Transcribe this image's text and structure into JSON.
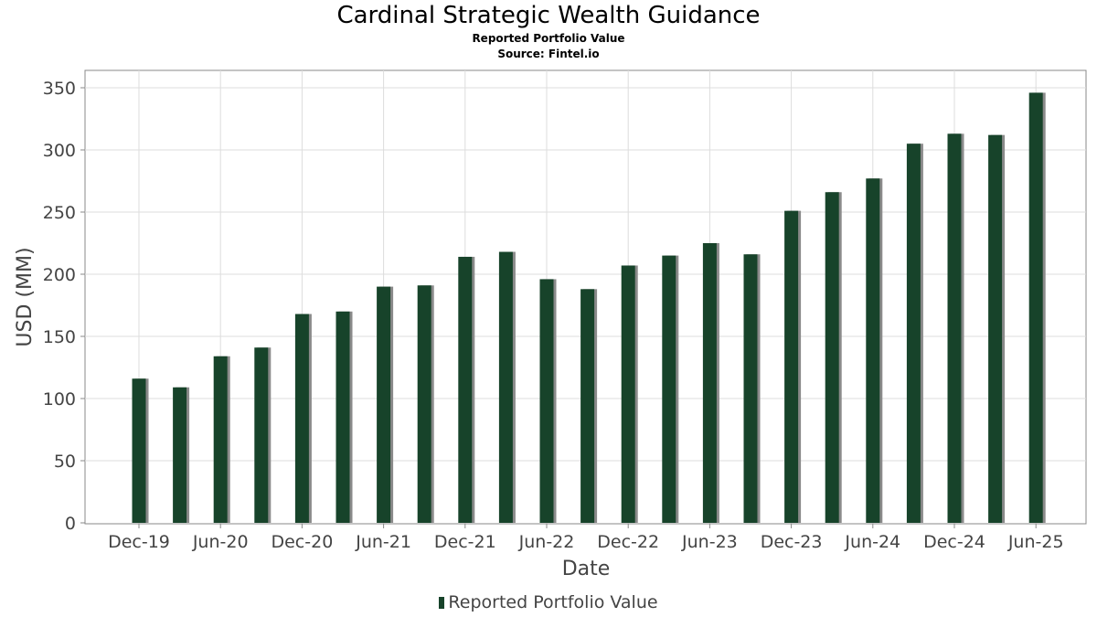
{
  "header": {
    "title": "Cardinal Strategic Wealth Guidance",
    "subtitle": "Reported Portfolio Value",
    "source": "Source: Fintel.io"
  },
  "legend": {
    "label": "Reported Portfolio Value"
  },
  "colors": {
    "bar": "#17432a",
    "shadow": "#8a8a8a",
    "grid": "#dddddd",
    "axis": "#888888",
    "text": "#444444"
  },
  "chart_data": {
    "type": "bar",
    "title": "Cardinal Strategic Wealth Guidance",
    "subtitle": "Reported Portfolio Value",
    "xlabel": "Date",
    "ylabel": "USD (MM)",
    "ylim": [
      0,
      360
    ],
    "yticks": [
      0,
      50,
      100,
      150,
      200,
      250,
      300,
      350
    ],
    "xticks": [
      "Dec-19",
      "Jun-20",
      "Dec-20",
      "Jun-21",
      "Dec-21",
      "Jun-22",
      "Dec-22",
      "Jun-23",
      "Dec-23",
      "Jun-24",
      "Dec-24",
      "Jun-25"
    ],
    "grid": true,
    "legend_position": "bottom",
    "categories": [
      "Dec-19",
      "Mar-20",
      "Jun-20",
      "Sep-20",
      "Dec-20",
      "Mar-21",
      "Jun-21",
      "Sep-21",
      "Dec-21",
      "Mar-22",
      "Jun-22",
      "Sep-22",
      "Dec-22",
      "Mar-23",
      "Jun-23",
      "Sep-23",
      "Dec-23",
      "Mar-24",
      "Jun-24",
      "Sep-24",
      "Dec-24",
      "Mar-25",
      "Jun-25"
    ],
    "series": [
      {
        "name": "Reported Portfolio Value",
        "values": [
          116,
          109,
          134,
          141,
          168,
          170,
          190,
          191,
          214,
          218,
          196,
          188,
          207,
          215,
          225,
          216,
          251,
          266,
          277,
          305,
          313,
          312,
          346
        ]
      }
    ]
  }
}
